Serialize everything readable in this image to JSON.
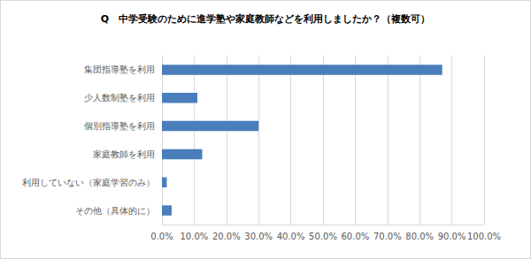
{
  "chart_data": {
    "type": "bar",
    "orientation": "horizontal",
    "title": "Q　中学受験のために進学塾や家庭教師などを利用しましたか？（複数可）",
    "categories": [
      "集団指導塾を利用",
      "少人数制塾を利用",
      "個別指導塾を利用",
      "家庭教師を利用",
      "利用していない（家庭学習のみ）",
      "その他（具体的に）"
    ],
    "values": [
      87,
      11,
      30,
      12.5,
      1.5,
      3
    ],
    "color": "#4a7ebb",
    "xlim": [
      0,
      100
    ],
    "xticks": [
      {
        "value": 0,
        "label": "0.0%"
      },
      {
        "value": 10,
        "label": "10.0%"
      },
      {
        "value": 20,
        "label": "20.0%"
      },
      {
        "value": 30,
        "label": "30.0%"
      },
      {
        "value": 40,
        "label": "40.0%"
      },
      {
        "value": 50,
        "label": "50.0%"
      },
      {
        "value": 60,
        "label": "60.0%"
      },
      {
        "value": 70,
        "label": "70.0%"
      },
      {
        "value": 80,
        "label": "80.0%"
      },
      {
        "value": 90,
        "label": "90.0%"
      },
      {
        "value": 100,
        "label": "100.0%"
      }
    ],
    "grid": true
  }
}
